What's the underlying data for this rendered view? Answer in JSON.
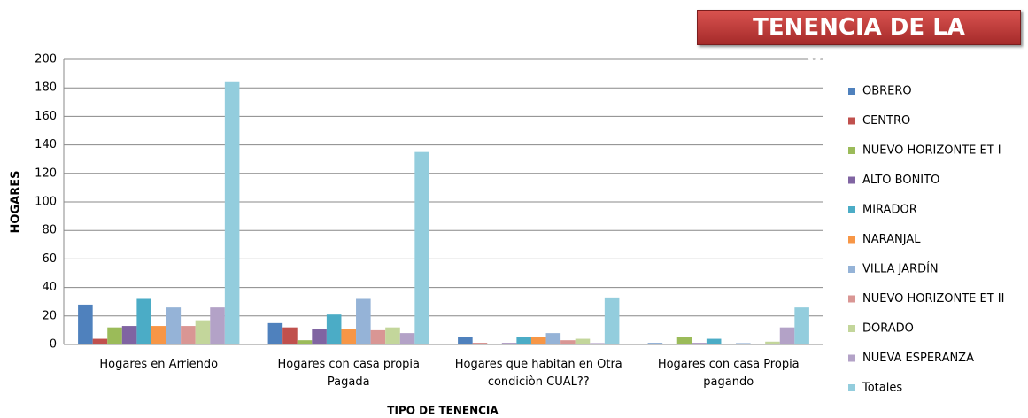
{
  "chart_data": {
    "type": "bar",
    "title": "TENENCIA DE LA VIIENDA",
    "y_label": "HOGARES",
    "x_label": "TIPO DE TENENCIA",
    "categories": [
      "Hogares en Arriendo",
      "Hogares con casa propia Pagada",
      "Hogares que habitan en Otra condiciòn CUAL??",
      "Hogares con casa Propia pagando"
    ],
    "ylim": [
      0,
      200
    ],
    "yticks": [
      0,
      20,
      40,
      60,
      80,
      100,
      120,
      140,
      160,
      180,
      200
    ],
    "grid": true,
    "legend": "right",
    "series": [
      {
        "name": "OBRERO",
        "color": "#4f81bd",
        "values": [
          28,
          15,
          5,
          1
        ]
      },
      {
        "name": "CENTRO",
        "color": "#c0504d",
        "values": [
          4,
          12,
          1,
          0
        ]
      },
      {
        "name": "NUEVO HORIZONTE ET I",
        "color": "#9bbb59",
        "values": [
          12,
          3,
          0,
          5
        ]
      },
      {
        "name": "ALTO BONITO",
        "color": "#8064a2",
        "values": [
          13,
          11,
          1,
          1
        ]
      },
      {
        "name": "MIRADOR",
        "color": "#4bacc6",
        "values": [
          32,
          21,
          5,
          4
        ]
      },
      {
        "name": "NARANJAL",
        "color": "#f79646",
        "values": [
          13,
          11,
          5,
          0
        ]
      },
      {
        "name": "VILLA JARDÍN",
        "color": "#95b3d7",
        "values": [
          26,
          32,
          8,
          1
        ]
      },
      {
        "name": "NUEVO HORIZONTE ET II",
        "color": "#d99694",
        "values": [
          13,
          10,
          3,
          0
        ]
      },
      {
        "name": "DORADO",
        "color": "#c3d69b",
        "values": [
          17,
          12,
          4,
          2
        ]
      },
      {
        "name": "NUEVA ESPERANZA",
        "color": "#b3a2c7",
        "values": [
          26,
          8,
          1,
          12
        ]
      },
      {
        "name": "Totales",
        "color": "#93cddd",
        "values": [
          184,
          135,
          33,
          26
        ]
      }
    ]
  }
}
